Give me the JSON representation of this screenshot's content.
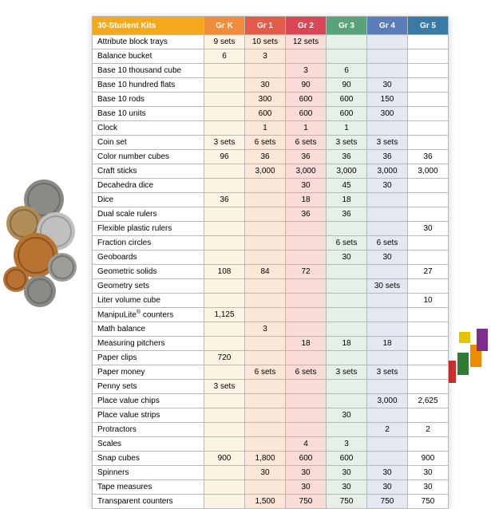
{
  "table": {
    "header_label": "30-Student Kits",
    "columns": [
      "Gr K",
      "Gr 1",
      "Gr 2",
      "Gr 3",
      "Gr 4",
      "Gr 5"
    ],
    "header_bg": "#f6a81c",
    "col_header_bg": [
      "#f08c3a",
      "#e25b4b",
      "#d94756",
      "#5aa37a",
      "#5a7cb8",
      "#3a7aa6"
    ],
    "col_cell_bg": [
      "#fdf3e4",
      "#fbe7d8",
      "#f9dcd8",
      "#e6f0e6",
      "#e3e8f3",
      "#ffffff"
    ],
    "border_color": "#b8b8b8",
    "font_size_header": 10,
    "font_size_body": 10,
    "rows": [
      {
        "label": "Attribute block trays",
        "cells": [
          "9 sets",
          "10 sets",
          "12 sets",
          "",
          "",
          ""
        ]
      },
      {
        "label": "Balance bucket",
        "cells": [
          "6",
          "3",
          "",
          "",
          "",
          ""
        ]
      },
      {
        "label": "Base 10 thousand cube",
        "cells": [
          "",
          "",
          "3",
          "6",
          "",
          ""
        ]
      },
      {
        "label": "Base 10 hundred flats",
        "cells": [
          "",
          "30",
          "90",
          "90",
          "30",
          ""
        ]
      },
      {
        "label": "Base 10 rods",
        "cells": [
          "",
          "300",
          "600",
          "600",
          "150",
          ""
        ]
      },
      {
        "label": "Base 10 units",
        "cells": [
          "",
          "600",
          "600",
          "600",
          "300",
          ""
        ]
      },
      {
        "label": "Clock",
        "cells": [
          "",
          "1",
          "1",
          "1",
          "",
          ""
        ]
      },
      {
        "label": "Coin set",
        "cells": [
          "3 sets",
          "6 sets",
          "6 sets",
          "3 sets",
          "3 sets",
          ""
        ]
      },
      {
        "label": "Color number cubes",
        "cells": [
          "96",
          "36",
          "36",
          "36",
          "36",
          "36"
        ]
      },
      {
        "label": "Craft sticks",
        "cells": [
          "",
          "3,000",
          "3,000",
          "3,000",
          "3,000",
          "3,000"
        ]
      },
      {
        "label": "Decahedra dice",
        "cells": [
          "",
          "",
          "30",
          "45",
          "30",
          ""
        ]
      },
      {
        "label": "Dice",
        "cells": [
          "36",
          "",
          "18",
          "18",
          "",
          ""
        ]
      },
      {
        "label": "Dual scale rulers",
        "cells": [
          "",
          "",
          "36",
          "36",
          "",
          ""
        ]
      },
      {
        "label": "Flexible plastic rulers",
        "cells": [
          "",
          "",
          "",
          "",
          "",
          "30"
        ]
      },
      {
        "label": "Fraction circles",
        "cells": [
          "",
          "",
          "",
          "6 sets",
          "6 sets",
          ""
        ]
      },
      {
        "label": "Geoboards",
        "cells": [
          "",
          "",
          "",
          "30",
          "30",
          ""
        ]
      },
      {
        "label": "Geometric solids",
        "cells": [
          "108",
          "84",
          "72",
          "",
          "",
          "27"
        ]
      },
      {
        "label": "Geometry sets",
        "cells": [
          "",
          "",
          "",
          "",
          "30 sets",
          ""
        ]
      },
      {
        "label": "Liter volume cube",
        "cells": [
          "",
          "",
          "",
          "",
          "",
          "10"
        ]
      },
      {
        "label": "ManipuLite® counters",
        "cells": [
          "1,125",
          "",
          "",
          "",
          "",
          ""
        ]
      },
      {
        "label": "Math balance",
        "cells": [
          "",
          "3",
          "",
          "",
          "",
          ""
        ]
      },
      {
        "label": "Measuring pitchers",
        "cells": [
          "",
          "",
          "18",
          "18",
          "18",
          ""
        ]
      },
      {
        "label": "Paper clips",
        "cells": [
          "720",
          "",
          "",
          "",
          "",
          ""
        ]
      },
      {
        "label": "Paper money",
        "cells": [
          "",
          "6 sets",
          "6 sets",
          "3 sets",
          "3 sets",
          ""
        ]
      },
      {
        "label": "Penny sets",
        "cells": [
          "3 sets",
          "",
          "",
          "",
          "",
          ""
        ]
      },
      {
        "label": "Place value chips",
        "cells": [
          "",
          "",
          "",
          "",
          "3,000",
          "2,625"
        ]
      },
      {
        "label": "Place value strips",
        "cells": [
          "",
          "",
          "",
          "30",
          "",
          ""
        ]
      },
      {
        "label": "Protractors",
        "cells": [
          "",
          "",
          "",
          "",
          "2",
          "2"
        ]
      },
      {
        "label": "Scales",
        "cells": [
          "",
          "",
          "4",
          "3",
          "",
          ""
        ]
      },
      {
        "label": "Snap cubes",
        "cells": [
          "900",
          "1,800",
          "600",
          "600",
          "",
          "900"
        ]
      },
      {
        "label": "Spinners",
        "cells": [
          "",
          "30",
          "30",
          "30",
          "30",
          "30"
        ]
      },
      {
        "label": "Tape measures",
        "cells": [
          "",
          "",
          "30",
          "30",
          "30",
          "30"
        ]
      },
      {
        "label": "Transparent counters",
        "cells": [
          "",
          "1,500",
          "750",
          "750",
          "750",
          "750"
        ]
      }
    ]
  },
  "decor": {
    "coin_colors": [
      "#8a8a86",
      "#b08d57",
      "#c0c0c0",
      "#6e6e6a",
      "#b87333",
      "#9c9c98"
    ],
    "cube_colors": [
      "#7b2e8e",
      "#e6c200",
      "#ffffff",
      "#1a1a1a",
      "#d12f2f",
      "#2f7d32",
      "#f08c00",
      "#2f5db8"
    ]
  }
}
